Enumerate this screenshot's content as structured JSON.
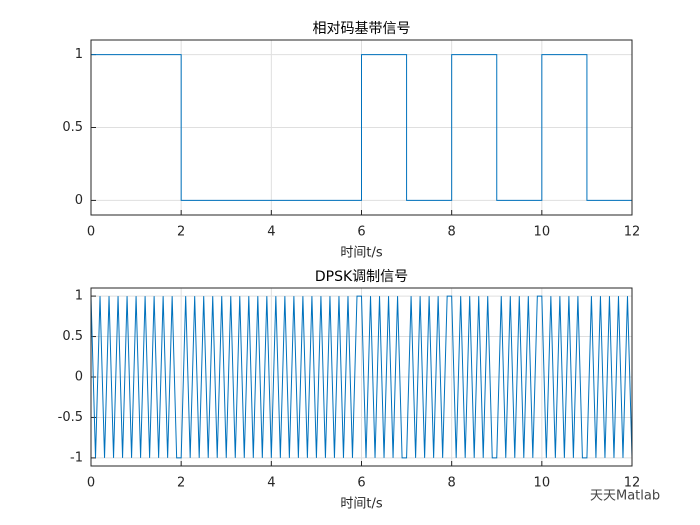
{
  "chart_data": [
    {
      "type": "line",
      "title": "相对码基带信号",
      "xlabel": "时间t/s",
      "color": "#0072bd",
      "grid": true,
      "x": [
        0,
        2,
        2,
        6,
        6,
        7,
        7,
        8,
        8,
        9,
        9,
        10,
        10,
        11,
        11,
        12
      ],
      "values": [
        1,
        1,
        0,
        0,
        1,
        1,
        0,
        0,
        1,
        1,
        0,
        0,
        1,
        1,
        0,
        0
      ],
      "xlim": [
        0,
        12
      ],
      "ylim": [
        -0.1,
        1.1
      ],
      "xticks": [
        0,
        2,
        4,
        6,
        8,
        10,
        12
      ],
      "yticks": [
        0,
        0.5,
        1
      ]
    },
    {
      "type": "line",
      "title": "DPSK调制信号",
      "xlabel": "时间t/s",
      "color": "#0072bd",
      "grid": true,
      "x": [
        0,
        0.1,
        0.2,
        0.3,
        0.4,
        0.5,
        0.6,
        0.7,
        0.8,
        0.9,
        1,
        1.1,
        1.2,
        1.3,
        1.4,
        1.5,
        1.6,
        1.7,
        1.8,
        1.9,
        2,
        2.1,
        2.2,
        2.3,
        2.4,
        2.5,
        2.6,
        2.7,
        2.8,
        2.9,
        3,
        3.1,
        3.2,
        3.3,
        3.4,
        3.5,
        3.6,
        3.7,
        3.8,
        3.9,
        4,
        4.1,
        4.2,
        4.3,
        4.4,
        4.5,
        4.6,
        4.7,
        4.8,
        4.9,
        5,
        5.1,
        5.2,
        5.3,
        5.4,
        5.5,
        5.6,
        5.7,
        5.8,
        5.9,
        6,
        6.1,
        6.2,
        6.3,
        6.4,
        6.5,
        6.6,
        6.7,
        6.8,
        6.9,
        7,
        7.1,
        7.2,
        7.3,
        7.4,
        7.5,
        7.6,
        7.7,
        7.8,
        7.9,
        8,
        8.1,
        8.2,
        8.3,
        8.4,
        8.5,
        8.6,
        8.7,
        8.8,
        8.9,
        9,
        9.1,
        9.2,
        9.3,
        9.4,
        9.5,
        9.6,
        9.7,
        9.8,
        9.9,
        10,
        10.1,
        10.2,
        10.3,
        10.4,
        10.5,
        10.6,
        10.7,
        10.8,
        10.9,
        11,
        11.1,
        11.2,
        11.3,
        11.4,
        11.5,
        11.6,
        11.7,
        11.8,
        11.9,
        12
      ],
      "values": [
        1,
        -1,
        1,
        -1,
        1,
        -1,
        1,
        -1,
        1,
        -1,
        1,
        -1,
        1,
        -1,
        1,
        -1,
        1,
        -1,
        1,
        -1,
        -1,
        1,
        -1,
        1,
        -1,
        1,
        -1,
        1,
        -1,
        1,
        -1,
        1,
        -1,
        1,
        -1,
        1,
        -1,
        1,
        -1,
        1,
        -1,
        1,
        -1,
        1,
        -1,
        1,
        -1,
        1,
        -1,
        1,
        -1,
        1,
        -1,
        1,
        -1,
        1,
        -1,
        1,
        -1,
        1,
        1,
        -1,
        1,
        -1,
        1,
        -1,
        1,
        -1,
        1,
        -1,
        -1,
        1,
        -1,
        1,
        -1,
        1,
        -1,
        1,
        -1,
        1,
        1,
        -1,
        1,
        -1,
        1,
        -1,
        1,
        -1,
        1,
        -1,
        -1,
        1,
        -1,
        1,
        -1,
        1,
        -1,
        1,
        -1,
        1,
        1,
        -1,
        1,
        -1,
        1,
        -1,
        1,
        -1,
        1,
        -1,
        -1,
        1,
        -1,
        1,
        -1,
        1,
        -1,
        1,
        -1,
        1,
        -1
      ],
      "xlim": [
        0,
        12
      ],
      "ylim": [
        -1.1,
        1.1
      ],
      "xticks": [
        0,
        2,
        4,
        6,
        8,
        10,
        12
      ],
      "yticks": [
        -1,
        -0.5,
        0,
        0.5,
        1
      ]
    }
  ],
  "watermark": "天天Matlab"
}
